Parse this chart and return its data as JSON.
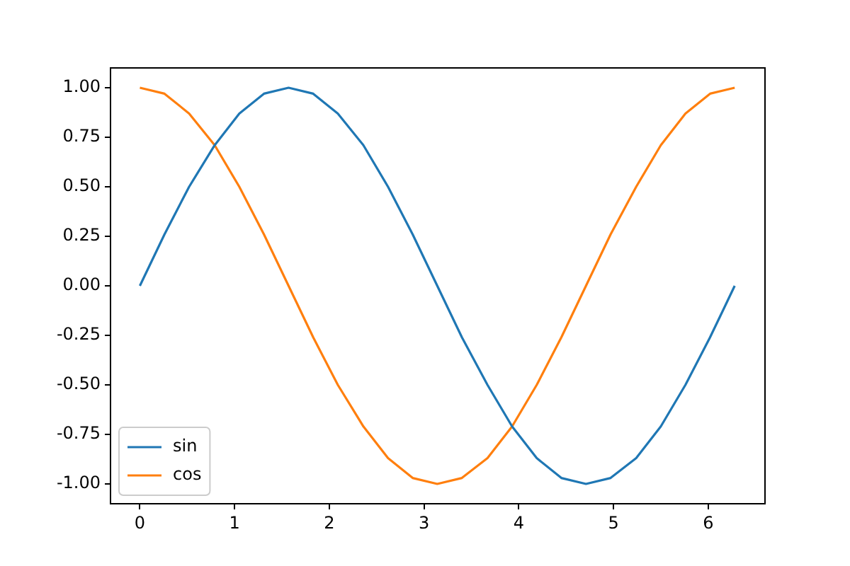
{
  "chart_data": {
    "type": "line",
    "x": [
      0,
      0.26,
      0.52,
      0.79,
      1.05,
      1.31,
      1.57,
      1.83,
      2.09,
      2.36,
      2.62,
      2.88,
      3.14,
      3.4,
      3.67,
      3.93,
      4.19,
      4.45,
      4.71,
      4.97,
      5.24,
      5.5,
      5.76,
      6.02,
      6.28
    ],
    "series": [
      {
        "name": "sin",
        "color": "#1f77b4",
        "values": [
          0,
          0.26,
          0.5,
          0.71,
          0.87,
          0.97,
          1,
          0.97,
          0.87,
          0.71,
          0.5,
          0.26,
          0,
          -0.26,
          -0.5,
          -0.71,
          -0.87,
          -0.97,
          -1,
          -0.97,
          -0.87,
          -0.71,
          -0.5,
          -0.26,
          0
        ]
      },
      {
        "name": "cos",
        "color": "#ff7f0e",
        "values": [
          1,
          0.97,
          0.87,
          0.71,
          0.5,
          0.26,
          0,
          -0.26,
          -0.5,
          -0.71,
          -0.87,
          -0.97,
          -1,
          -0.97,
          -0.87,
          -0.71,
          -0.5,
          -0.26,
          0,
          0.26,
          0.5,
          0.71,
          0.87,
          0.97,
          1
        ]
      }
    ],
    "xlim": [
      -0.31,
      6.6
    ],
    "xticks": [
      0,
      1,
      2,
      3,
      4,
      5,
      6
    ],
    "ylim": [
      -1.1,
      1.1
    ],
    "yticks": [
      {
        "value": -1,
        "label": "-1.00"
      },
      {
        "value": -0.75,
        "label": "-0.75"
      },
      {
        "value": -0.5,
        "label": "-0.50"
      },
      {
        "value": -0.25,
        "label": "-0.25"
      },
      {
        "value": 0,
        "label": "0.00"
      },
      {
        "value": 0.25,
        "label": "0.25"
      },
      {
        "value": 0.5,
        "label": "0.50"
      },
      {
        "value": 0.75,
        "label": "0.75"
      },
      {
        "value": 1,
        "label": "1.00"
      }
    ],
    "grid": false,
    "legend": "bottom left",
    "marker": "none",
    "line_style": "solid"
  }
}
